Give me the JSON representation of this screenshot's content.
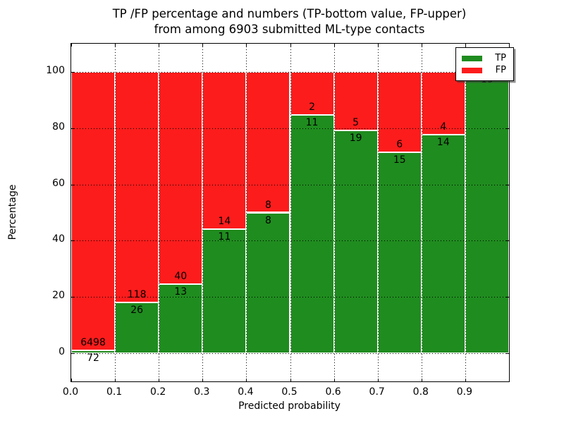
{
  "title": {
    "line1": "TP /FP percentage and numbers (TP-bottom value, FP-upper)",
    "line2": "from among 6903 submitted ML-type contacts"
  },
  "chart_data": {
    "type": "bar",
    "stacked": true,
    "normalized": "percent",
    "title": "TP /FP percentage and numbers (TP-bottom value, FP-upper)\nfrom among 6903 submitted ML-type contacts",
    "xlabel": "Predicted probability",
    "ylabel": "Percentage",
    "xlim": [
      0.0,
      1.0
    ],
    "ylim": [
      -10,
      110
    ],
    "x_ticks": [
      "0.0",
      "0.1",
      "0.2",
      "0.3",
      "0.4",
      "0.5",
      "0.6",
      "0.7",
      "0.8",
      "0.9"
    ],
    "y_ticks": [
      "0",
      "20",
      "40",
      "60",
      "80",
      "100"
    ],
    "grid": true,
    "total_contacts": 6903,
    "bins": [
      {
        "range": [
          0.0,
          0.1
        ],
        "tp": 72,
        "fp": 6498
      },
      {
        "range": [
          0.1,
          0.2
        ],
        "tp": 26,
        "fp": 118
      },
      {
        "range": [
          0.2,
          0.3
        ],
        "tp": 13,
        "fp": 40
      },
      {
        "range": [
          0.3,
          0.4
        ],
        "tp": 11,
        "fp": 14
      },
      {
        "range": [
          0.4,
          0.5
        ],
        "tp": 8,
        "fp": 8
      },
      {
        "range": [
          0.5,
          0.6
        ],
        "tp": 11,
        "fp": 2
      },
      {
        "range": [
          0.6,
          0.7
        ],
        "tp": 19,
        "fp": 5
      },
      {
        "range": [
          0.7,
          0.8
        ],
        "tp": 15,
        "fp": 6
      },
      {
        "range": [
          0.8,
          0.9
        ],
        "tp": 14,
        "fp": 4
      },
      {
        "range": [
          0.9,
          1.0
        ],
        "tp": 19,
        "fp": 0
      }
    ],
    "legend": {
      "position": "upper right",
      "entries": [
        {
          "label": "TP",
          "color": "#1f8c1f"
        },
        {
          "label": "FP",
          "color": "#fc1c1c"
        }
      ]
    }
  },
  "colors": {
    "tp": "#1f8c1f",
    "fp": "#fc1c1c",
    "background": "#ffffff",
    "frame": "#000000",
    "text": "#000000"
  }
}
